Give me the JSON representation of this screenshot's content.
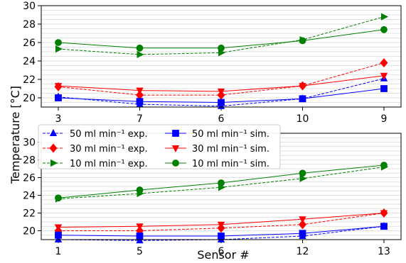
{
  "figure": {
    "ylabel": "Temperature [°C]",
    "xlabel": "Sensor #"
  },
  "legend": {
    "placement": "top-left of lower panel",
    "entries": [
      {
        "label": "50 ml min⁻¹ exp.",
        "color": "#0000ff",
        "marker": "triangle-up",
        "dashed": true
      },
      {
        "label": "30 ml min⁻¹ exp.",
        "color": "#ff0000",
        "marker": "diamond",
        "dashed": true
      },
      {
        "label": "10 ml min⁻¹ exp.",
        "color": "#008000",
        "marker": "triangle-right",
        "dashed": true
      },
      {
        "label": "50 ml min⁻¹ sim.",
        "color": "#0000ff",
        "marker": "square",
        "dashed": false
      },
      {
        "label": "30 ml min⁻¹ sim.",
        "color": "#ff0000",
        "marker": "triangle-down",
        "dashed": false
      },
      {
        "label": "10 ml min⁻¹ sim.",
        "color": "#008000",
        "marker": "circle",
        "dashed": false
      }
    ]
  },
  "chart_data": [
    {
      "type": "line",
      "categories": [
        "3",
        "7",
        "6",
        "10",
        "9"
      ],
      "ylim": [
        19,
        30
      ],
      "yticks": [
        "20",
        "22",
        "24",
        "26",
        "28",
        "30"
      ],
      "grid": "horizontal minor",
      "series": [
        {
          "name": "50 ml min⁻¹ exp.",
          "color": "#0000ff",
          "marker": "triangle-up",
          "dashed": true,
          "values": [
            20.1,
            19.3,
            19.1,
            19.9,
            22.1
          ]
        },
        {
          "name": "30 ml min⁻¹ exp.",
          "color": "#ff0000",
          "marker": "diamond",
          "dashed": true,
          "values": [
            21.2,
            20.3,
            20.3,
            21.3,
            23.8
          ]
        },
        {
          "name": "10 ml min⁻¹ exp.",
          "color": "#008000",
          "marker": "triangle-right",
          "dashed": true,
          "values": [
            25.3,
            24.7,
            24.9,
            26.3,
            28.8
          ]
        },
        {
          "name": "50 ml min⁻¹ sim.",
          "color": "#0000ff",
          "marker": "square",
          "dashed": false,
          "values": [
            20.0,
            19.6,
            19.5,
            19.9,
            21.0
          ]
        },
        {
          "name": "30 ml min⁻¹ sim.",
          "color": "#ff0000",
          "marker": "triangle-down",
          "dashed": false,
          "values": [
            21.3,
            20.8,
            20.7,
            21.3,
            22.4
          ]
        },
        {
          "name": "10 ml min⁻¹ sim.",
          "color": "#008000",
          "marker": "circle",
          "dashed": false,
          "values": [
            26.0,
            25.4,
            25.4,
            26.2,
            27.4
          ]
        }
      ]
    },
    {
      "type": "line",
      "categories": [
        "1",
        "5",
        "6",
        "12",
        "13"
      ],
      "ylim": [
        19,
        31
      ],
      "yticks": [
        "20",
        "22",
        "24",
        "26",
        "28",
        "30"
      ],
      "grid": "horizontal minor",
      "series": [
        {
          "name": "50 ml min⁻¹ exp.",
          "color": "#0000ff",
          "marker": "triangle-up",
          "dashed": true,
          "values": [
            19.0,
            18.9,
            19.0,
            19.4,
            20.5
          ]
        },
        {
          "name": "30 ml min⁻¹ exp.",
          "color": "#ff0000",
          "marker": "diamond",
          "dashed": true,
          "values": [
            20.0,
            20.0,
            20.3,
            20.7,
            22.0
          ]
        },
        {
          "name": "10 ml min⁻¹ exp.",
          "color": "#008000",
          "marker": "triangle-right",
          "dashed": true,
          "values": [
            23.6,
            24.2,
            24.9,
            25.9,
            27.2
          ]
        },
        {
          "name": "50 ml min⁻¹ sim.",
          "color": "#0000ff",
          "marker": "square",
          "dashed": false,
          "values": [
            19.5,
            19.4,
            19.4,
            19.7,
            20.5
          ]
        },
        {
          "name": "30 ml min⁻¹ sim.",
          "color": "#ff0000",
          "marker": "triangle-down",
          "dashed": false,
          "values": [
            20.4,
            20.5,
            20.7,
            21.3,
            22.0
          ]
        },
        {
          "name": "10 ml min⁻¹ sim.",
          "color": "#008000",
          "marker": "circle",
          "dashed": false,
          "values": [
            23.7,
            24.6,
            25.4,
            26.5,
            27.4
          ]
        }
      ]
    }
  ]
}
